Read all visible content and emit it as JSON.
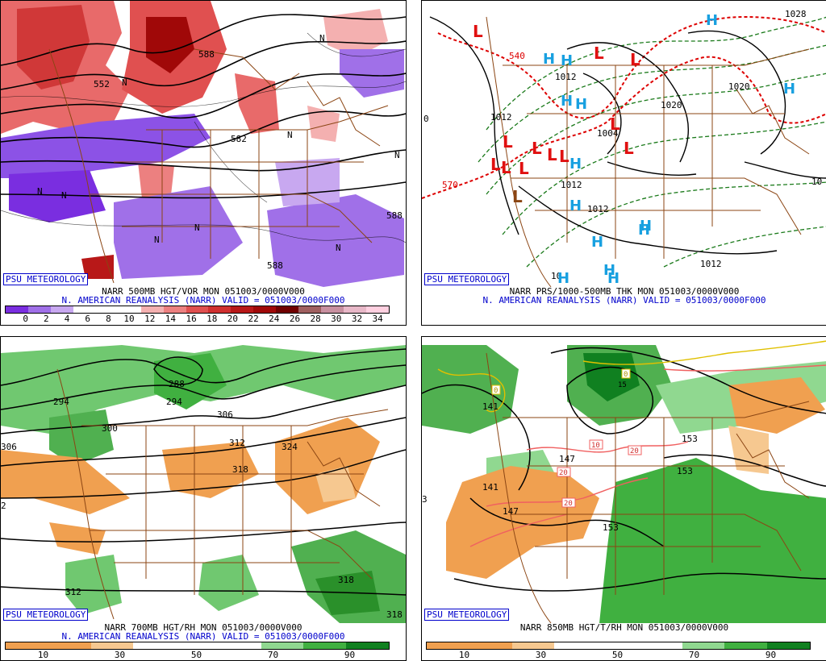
{
  "panels": [
    {
      "id": "top-left",
      "badge": "PSU METEOROLOGY",
      "caption1": "NARR 500MB HGT/VOR MON 051003/0000V000",
      "caption2": "N. AMERICAN REANALYSIS (NARR) VALID = 051003/0000F000",
      "labels": [
        "552",
        "588",
        "582",
        "588",
        "588",
        "N",
        "N",
        "N",
        "N",
        "N",
        "N",
        "N",
        "N",
        "N"
      ],
      "colorbar": {
        "colors": [
          "#7a2ee0",
          "#a070e8",
          "#c8a8f0",
          "#ffffff",
          "#ffffff",
          "#ffffff",
          "#f4b0b0",
          "#ec8080",
          "#e05050",
          "#d03030",
          "#b81818",
          "#a00808",
          "#700000",
          "#a06060",
          "#c890a0",
          "#e8b8c8",
          "#ffd0e0"
        ],
        "ticks": [
          "0",
          "2",
          "4",
          "6",
          "8",
          "10",
          "12",
          "14",
          "16",
          "18",
          "20",
          "22",
          "24",
          "26",
          "28",
          "30",
          "32",
          "34"
        ]
      }
    },
    {
      "id": "top-right",
      "badge": "PSU METEOROLOGY",
      "caption1": "NARR PRS/1000-500MB THK MON 051003/0000V000",
      "caption2": "N. AMERICAN REANALYSIS (NARR) VALID = 051003/0000F000",
      "labels": [
        "540",
        "570",
        "1012",
        "1012",
        "1012",
        "1012",
        "1020",
        "1020",
        "1004",
        "1028",
        "10",
        "0",
        "10",
        "1012"
      ],
      "highs": [
        "H",
        "H",
        "H",
        "H",
        "H",
        "H",
        "H",
        "H",
        "H",
        "H",
        "H",
        "H",
        "H",
        "H"
      ],
      "lows": [
        "L",
        "L",
        "L",
        "L",
        "L",
        "L",
        "L",
        "L",
        "L",
        "L",
        "L",
        "L",
        "L"
      ]
    },
    {
      "id": "bottom-left",
      "badge": "PSU METEOROLOGY",
      "caption1": "NARR 700MB HGT/RH MON 051003/0000V000",
      "caption2": "N. AMERICAN REANALYSIS (NARR) VALID = 051003/0000F000",
      "labels": [
        "288",
        "294",
        "294",
        "300",
        "306",
        "312",
        "318",
        "324",
        "312",
        "318",
        "318",
        "306",
        "2"
      ],
      "colorbar": {
        "colors": [
          "#f0a050",
          "#f0a050",
          "#f6c890",
          "#ffffff",
          "#ffffff",
          "#ffffff",
          "#90d890",
          "#40b040",
          "#108020"
        ],
        "ticks": [
          "10",
          "30",
          "50",
          "70",
          "90"
        ]
      }
    },
    {
      "id": "bottom-right",
      "badge": "PSU METEOROLOGY",
      "caption1": "NARR 850MB HGT/T/RH MON 051003/0000V000",
      "caption2": "",
      "labels": [
        "141",
        "147",
        "141",
        "147",
        "153",
        "153",
        "153",
        "3",
        "0",
        "0",
        "10",
        "20",
        "20",
        "20",
        "15"
      ],
      "colorbar": {
        "colors": [
          "#f0a050",
          "#f0a050",
          "#f6c890",
          "#ffffff",
          "#ffffff",
          "#ffffff",
          "#90d890",
          "#40b040",
          "#108020"
        ],
        "ticks": [
          "10",
          "30",
          "50",
          "70",
          "90"
        ]
      }
    }
  ]
}
